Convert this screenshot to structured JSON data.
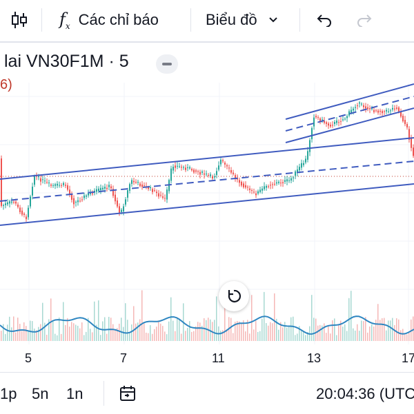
{
  "toolbar": {
    "indicators_label": "Các chỉ báo",
    "chart_type_label": "Biểu đồ"
  },
  "symbol": {
    "title": "lai VN30F1M · 5",
    "change_fragment": "6)"
  },
  "x_axis": {
    "labels": [
      "5",
      "7",
      "11",
      "13",
      "17"
    ]
  },
  "timeframes": [
    "1p",
    "5n",
    "1n"
  ],
  "clock": "20:04:36 (UTC",
  "colors": {
    "up": "#26a69a",
    "down": "#ef5350",
    "channel": "#3f5bbf",
    "oscillator": "#2e86c1"
  }
}
